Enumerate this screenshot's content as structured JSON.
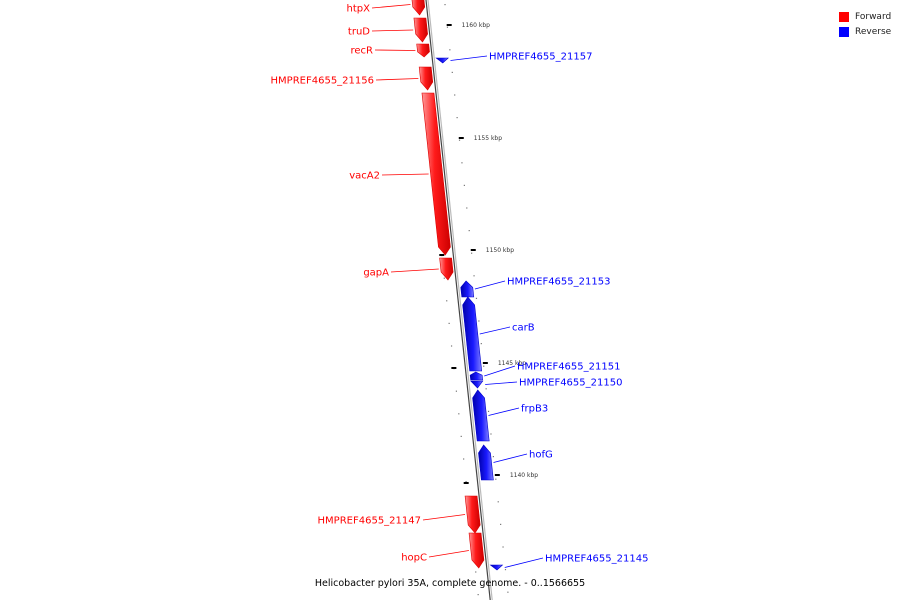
{
  "legend": {
    "items": [
      {
        "label": "Forward",
        "color": "#ff0000"
      },
      {
        "label": "Reverse",
        "color": "#0000ff"
      }
    ]
  },
  "caption": "Helicobacter pylori 35A, complete genome. - 0..1566655",
  "scale_ticks": [
    {
      "label": "1160 kbp",
      "position_kbp": 1160
    },
    {
      "label": "1155 kbp",
      "position_kbp": 1155
    },
    {
      "label": "1150 kbp",
      "position_kbp": 1150
    },
    {
      "label": "1145 kbp",
      "position_kbp": 1145
    },
    {
      "label": "1140 kbp",
      "position_kbp": 1140
    }
  ],
  "genes": [
    {
      "name": "htpX",
      "strand": "forward"
    },
    {
      "name": "truD",
      "strand": "forward"
    },
    {
      "name": "recR",
      "strand": "forward"
    },
    {
      "name": "HMPREF4655_21157",
      "strand": "reverse"
    },
    {
      "name": "HMPREF4655_21156",
      "strand": "forward"
    },
    {
      "name": "vacA2",
      "strand": "forward"
    },
    {
      "name": "gapA",
      "strand": "forward"
    },
    {
      "name": "HMPREF4655_21153",
      "strand": "reverse"
    },
    {
      "name": "carB",
      "strand": "reverse"
    },
    {
      "name": "HMPREF4655_21151",
      "strand": "reverse"
    },
    {
      "name": "HMPREF4655_21150",
      "strand": "reverse"
    },
    {
      "name": "frpB3",
      "strand": "reverse"
    },
    {
      "name": "hofG",
      "strand": "reverse"
    },
    {
      "name": "HMPREF4655_21147",
      "strand": "forward"
    },
    {
      "name": "hopC",
      "strand": "forward"
    },
    {
      "name": "HMPREF4655_21145",
      "strand": "reverse"
    }
  ],
  "colors": {
    "forward": "#ff0000",
    "reverse": "#0000ff",
    "backbone": "#888888"
  }
}
